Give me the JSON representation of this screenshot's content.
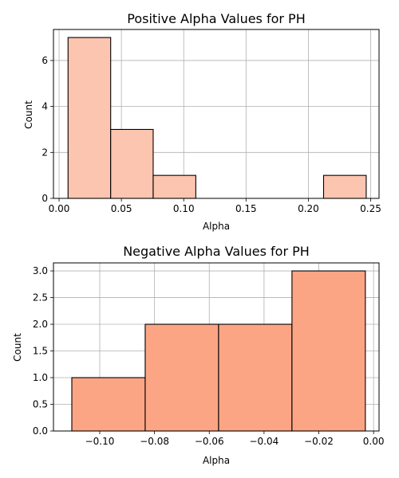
{
  "chart_data": [
    {
      "type": "bar",
      "title": "Positive Alpha Values for PH",
      "xlabel": "Alpha",
      "ylabel": "Count",
      "xlim": [
        -0.0045,
        0.2567
      ],
      "ylim": [
        0,
        7.35
      ],
      "grid": true,
      "bar_color": "#fcc5b0",
      "edge_color": "#000000",
      "bins": [
        {
          "x0": 0.0072,
          "x1": 0.0414,
          "count": 7
        },
        {
          "x0": 0.0414,
          "x1": 0.0755,
          "count": 3
        },
        {
          "x0": 0.0755,
          "x1": 0.1097,
          "count": 1
        },
        {
          "x0": 0.1097,
          "x1": 0.1439,
          "count": 0
        },
        {
          "x0": 0.1439,
          "x1": 0.1781,
          "count": 0
        },
        {
          "x0": 0.1781,
          "x1": 0.2122,
          "count": 0
        },
        {
          "x0": 0.2122,
          "x1": 0.2464,
          "count": 1
        }
      ],
      "xticks": [
        0.0,
        0.05,
        0.1,
        0.15,
        0.2,
        0.25
      ],
      "xtick_labels": [
        "0.00",
        "0.05",
        "0.10",
        "0.15",
        "0.20",
        "0.25"
      ],
      "yticks": [
        0,
        2,
        4,
        6
      ],
      "ytick_labels": [
        "0",
        "2",
        "4",
        "6"
      ]
    },
    {
      "type": "bar",
      "title": "Negative Alpha Values for PH",
      "xlabel": "Alpha",
      "ylabel": "Count",
      "xlim": [
        -0.1169,
        0.002
      ],
      "ylim": [
        0,
        3.15
      ],
      "grid": true,
      "bar_color": "#fca584",
      "edge_color": "#000000",
      "bins": [
        {
          "x0": -0.1102,
          "x1": -0.0834,
          "count": 1
        },
        {
          "x0": -0.0834,
          "x1": -0.0566,
          "count": 2
        },
        {
          "x0": -0.0566,
          "x1": -0.0298,
          "count": 2
        },
        {
          "x0": -0.0298,
          "x1": -0.003,
          "count": 3
        }
      ],
      "xticks": [
        -0.1,
        -0.08,
        -0.06,
        -0.04,
        -0.02,
        0.0
      ],
      "xtick_labels": [
        "−0.10",
        "−0.08",
        "−0.06",
        "−0.04",
        "−0.02",
        "0.00"
      ],
      "yticks": [
        0,
        0.5,
        1.0,
        1.5,
        2.0,
        2.5,
        3.0
      ],
      "ytick_labels": [
        "0.0",
        "0.5",
        "1.0",
        "1.5",
        "2.0",
        "2.5",
        "3.0"
      ]
    }
  ]
}
